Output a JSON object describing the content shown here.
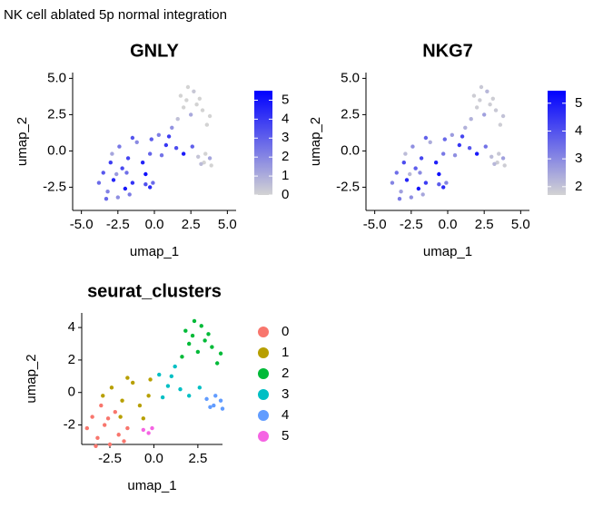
{
  "title": "NK cell ablated 5p normal integration",
  "chart_data": [
    {
      "type": "scatter",
      "title": "GNLY",
      "xlabel": "umap_1",
      "ylabel": "umap_2",
      "xlim": [
        -5.6,
        5.6
      ],
      "ylim": [
        -4.1,
        5.4
      ],
      "xticks": [
        {
          "value": -5,
          "label": "-5.0"
        },
        -2.5,
        {
          "value": 0,
          "label": "0.0"
        },
        2.5,
        {
          "value": 5,
          "label": "5.0"
        }
      ],
      "yticks": [
        -2.5,
        {
          "value": 0,
          "label": "0.0"
        },
        2.5,
        {
          "value": 5,
          "label": "5.0"
        }
      ],
      "x": [
        -3.5,
        -3.2,
        -2.8,
        -2.5,
        -2.2,
        -3.8,
        -2,
        -1.7,
        -3,
        -2.6,
        -1.5,
        -3.3,
        -2.4,
        -1.8,
        -1.2,
        -0.8,
        -0.3,
        -1.5,
        -2.9,
        -0.6,
        -1.9,
        -0.2,
        1.8,
        2.3,
        2.7,
        3.1,
        2,
        2.5,
        3.3,
        3.6,
        1.6,
        2.9,
        3.8,
        2.2,
        0.3,
        0.8,
        1.2,
        1.5,
        2,
        0.5,
        2.6,
        1,
        3,
        3.4,
        3.8,
        3.5,
        3.2,
        3.9,
        -0.6,
        -0.3,
        -0.1
      ],
      "y": [
        -1.5,
        -2.8,
        -2,
        -3.2,
        -1.2,
        -2.2,
        -2.6,
        -3,
        -0.8,
        -1.6,
        -2.2,
        -3.3,
        0.3,
        -0.5,
        0.6,
        -0.8,
        -0.2,
        0.9,
        -0.2,
        -1.6,
        -1.5,
        0.8,
        3.8,
        4.4,
        4.1,
        3.6,
        3,
        2.5,
        2.8,
        1.8,
        2.2,
        3.2,
        2.4,
        3.5,
        1.1,
        0.4,
        1.6,
        0.2,
        -0.2,
        -0.3,
        0.3,
        1,
        -0.4,
        -0.8,
        -0.5,
        -0.2,
        -0.9,
        -1,
        -2.3,
        -2.5,
        -2.2
      ],
      "values": [
        3.2,
        2.1,
        4.5,
        1.8,
        3.6,
        2.7,
        4.9,
        2.3,
        3.9,
        1.5,
        4.2,
        2.8,
        2.4,
        3.7,
        1.9,
        4.6,
        2.9,
        3.3,
        1.2,
        5.1,
        2.6,
        3.1,
        0,
        0,
        0.3,
        0,
        0,
        1.1,
        0,
        0,
        0.5,
        0,
        0,
        0,
        2.2,
        4.1,
        1.7,
        3.5,
        4.8,
        2.5,
        3,
        3.9,
        0.4,
        0,
        1.2,
        0,
        0.6,
        0,
        3.4,
        4.4,
        2.7
      ],
      "colorbar_lim": [
        0,
        5.5
      ],
      "colorbar_ticks": [
        0,
        1,
        2,
        3,
        4,
        5
      ],
      "colors": [
        "#d3d3d3",
        "#0000ff"
      ]
    },
    {
      "type": "scatter",
      "title": "NKG7",
      "xlabel": "umap_1",
      "ylabel": "umap_2",
      "xlim": [
        -5.6,
        5.6
      ],
      "ylim": [
        -4.1,
        5.4
      ],
      "xticks": [
        {
          "value": -5,
          "label": "-5.0"
        },
        -2.5,
        {
          "value": 0,
          "label": "0.0"
        },
        2.5,
        {
          "value": 5,
          "label": "5.0"
        }
      ],
      "yticks": [
        -2.5,
        {
          "value": 0,
          "label": "0.0"
        },
        2.5,
        {
          "value": 5,
          "label": "5.0"
        }
      ],
      "x": [
        -3.5,
        -3.2,
        -2.8,
        -2.5,
        -2.2,
        -3.8,
        -2,
        -1.7,
        -3,
        -2.6,
        -1.5,
        -3.3,
        -2.4,
        -1.8,
        -1.2,
        -0.8,
        -0.3,
        -1.5,
        -2.9,
        -0.6,
        -1.9,
        -0.2,
        1.8,
        2.3,
        2.7,
        3.1,
        2,
        2.5,
        3.3,
        3.6,
        1.6,
        2.9,
        3.8,
        2.2,
        0.3,
        0.8,
        1.2,
        1.5,
        2,
        0.5,
        2.6,
        1,
        3,
        3.4,
        3.8,
        3.5,
        3.2,
        3.9,
        -0.6,
        -0.3,
        -0.1
      ],
      "y": [
        -1.5,
        -2.8,
        -2,
        -3.2,
        -1.2,
        -2.2,
        -2.6,
        -3,
        -0.8,
        -1.6,
        -2.2,
        -3.3,
        0.3,
        -0.5,
        0.6,
        -0.8,
        -0.2,
        0.9,
        -0.2,
        -1.6,
        -1.5,
        0.8,
        3.8,
        4.4,
        4.1,
        3.6,
        3,
        2.5,
        2.8,
        1.8,
        2.2,
        3.2,
        2.4,
        3.5,
        1.1,
        0.4,
        1.6,
        0.2,
        -0.2,
        -0.3,
        0.3,
        1,
        -0.4,
        -0.8,
        -0.5,
        -0.2,
        -0.9,
        -1,
        -2.3,
        -2.5,
        -2.2
      ],
      "values": [
        3.5,
        2.6,
        4.8,
        2.9,
        3.8,
        3.1,
        5.1,
        2.5,
        4.1,
        2.2,
        4.4,
        3.3,
        2.9,
        4.2,
        2.4,
        4.9,
        3.3,
        3.7,
        2.1,
        5.2,
        3,
        3.6,
        1.8,
        1.9,
        2.2,
        1.8,
        1.8,
        2.6,
        1.9,
        1.8,
        2.3,
        1.8,
        2,
        1.8,
        2.7,
        4.5,
        2.3,
        3.9,
        5,
        2.9,
        3.4,
        4.2,
        2.1,
        1.8,
        2.6,
        1.9,
        2.2,
        1.8,
        3.8,
        4.7,
        3.1
      ],
      "colorbar_lim": [
        1.7,
        5.45
      ],
      "colorbar_ticks": [
        2,
        3,
        4,
        5
      ],
      "colors": [
        "#d3d3d3",
        "#0000ff"
      ]
    },
    {
      "type": "scatter",
      "title": "seurat_clusters",
      "xlabel": "umap_1",
      "ylabel": "umap_2",
      "xlim": [
        -4.1,
        3.9
      ],
      "ylim": [
        -3.2,
        4.9
      ],
      "xticks": [
        -2.5,
        {
          "value": 0,
          "label": "0.0"
        },
        2.5
      ],
      "yticks": [
        -2,
        0,
        2,
        4
      ],
      "series": [
        {
          "name": "0",
          "color": "#F8766D",
          "x": [
            -3.5,
            -3.2,
            -2.8,
            -2.5,
            -2.2,
            -3.8,
            -2,
            -1.7,
            -3,
            -2.6,
            -1.5,
            -3.3
          ],
          "y": [
            -1.5,
            -2.8,
            -2,
            -3.2,
            -1.2,
            -2.2,
            -2.6,
            -3,
            -0.8,
            -1.6,
            -2.2,
            -3.3
          ]
        },
        {
          "name": "1",
          "color": "#B79F00",
          "x": [
            -2.4,
            -1.8,
            -1.2,
            -0.8,
            -0.3,
            -1.5,
            -2.9,
            -0.6,
            -1.9,
            -0.2
          ],
          "y": [
            0.3,
            -0.5,
            0.6,
            -0.8,
            -0.2,
            0.9,
            -0.2,
            -1.6,
            -1.5,
            0.8
          ]
        },
        {
          "name": "2",
          "color": "#00BA38",
          "x": [
            1.8,
            2.3,
            2.7,
            3.1,
            2,
            2.5,
            3.3,
            3.6,
            1.6,
            2.9,
            3.8,
            2.2
          ],
          "y": [
            3.8,
            4.4,
            4.1,
            3.6,
            3,
            2.5,
            2.8,
            1.8,
            2.2,
            3.2,
            2.4,
            3.5
          ]
        },
        {
          "name": "3",
          "color": "#00BFC4",
          "x": [
            0.3,
            0.8,
            1.2,
            1.5,
            2,
            0.5,
            2.6,
            1
          ],
          "y": [
            1.1,
            0.4,
            1.6,
            0.2,
            -0.2,
            -0.3,
            0.3,
            1
          ]
        },
        {
          "name": "4",
          "color": "#619CFF",
          "x": [
            3,
            3.4,
            3.8,
            3.5,
            3.2,
            3.9
          ],
          "y": [
            -0.4,
            -0.8,
            -0.5,
            -0.2,
            -0.9,
            -1
          ]
        },
        {
          "name": "5",
          "color": "#F564E3",
          "x": [
            -0.6,
            -0.3,
            -0.1
          ],
          "y": [
            -2.3,
            -2.5,
            -2.2
          ]
        }
      ]
    }
  ]
}
